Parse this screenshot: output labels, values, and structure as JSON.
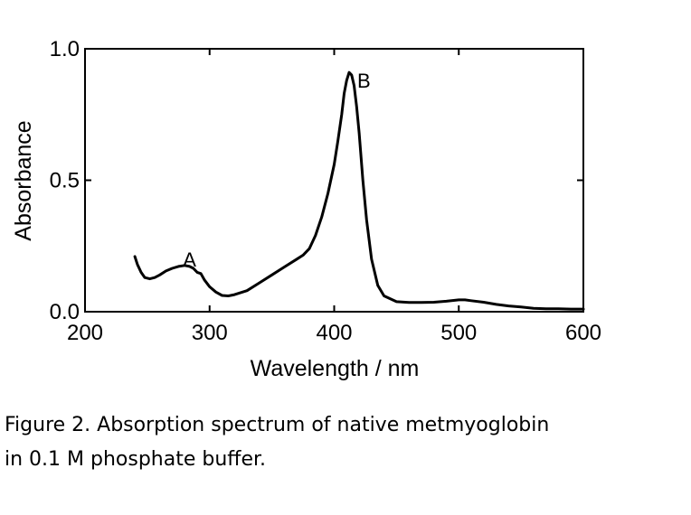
{
  "chart_data": {
    "type": "line",
    "title": "",
    "xlabel": "Wavelength / nm",
    "ylabel": "Absorbance",
    "xlim": [
      200,
      600
    ],
    "ylim": [
      0.0,
      1.0
    ],
    "x_ticks": [
      200,
      300,
      400,
      500,
      600
    ],
    "y_ticks": [
      0.0,
      0.5,
      1.0
    ],
    "x_tick_labels": [
      "200",
      "300",
      "400",
      "500",
      "600"
    ],
    "y_tick_labels": [
      "0.0",
      "0.5",
      "1.0"
    ],
    "grid": false,
    "series": [
      {
        "x": [
          240,
          242,
          245,
          248,
          252,
          256,
          260,
          265,
          270,
          275,
          280,
          284,
          287,
          290,
          293,
          296,
          300,
          305,
          310,
          315,
          320,
          330,
          340,
          350,
          360,
          370,
          375,
          380,
          385,
          390,
          395,
          400,
          403,
          406,
          408,
          410,
          412,
          414,
          416,
          418,
          420,
          423,
          426,
          430,
          435,
          440,
          450,
          460,
          470,
          480,
          490,
          500,
          505,
          510,
          520,
          530,
          540,
          550,
          560,
          570,
          580,
          590,
          600
        ],
        "y": [
          0.21,
          0.18,
          0.15,
          0.13,
          0.125,
          0.13,
          0.14,
          0.155,
          0.165,
          0.172,
          0.176,
          0.172,
          0.165,
          0.15,
          0.145,
          0.12,
          0.095,
          0.075,
          0.062,
          0.06,
          0.065,
          0.08,
          0.11,
          0.14,
          0.17,
          0.2,
          0.215,
          0.24,
          0.29,
          0.36,
          0.45,
          0.56,
          0.65,
          0.75,
          0.83,
          0.88,
          0.91,
          0.9,
          0.86,
          0.78,
          0.68,
          0.5,
          0.35,
          0.2,
          0.1,
          0.06,
          0.038,
          0.035,
          0.035,
          0.036,
          0.04,
          0.045,
          0.045,
          0.042,
          0.036,
          0.028,
          0.022,
          0.018,
          0.013,
          0.011,
          0.011,
          0.01,
          0.01
        ]
      }
    ],
    "annotations": [
      {
        "text": "A",
        "x": 280,
        "y": 0.2
      },
      {
        "text": "B",
        "x": 420,
        "y": 0.88
      }
    ]
  },
  "caption": {
    "line1": "Figure 2. Absorption spectrum of native metmyoglobin",
    "line2": "in 0.1 M phosphate buffer."
  }
}
